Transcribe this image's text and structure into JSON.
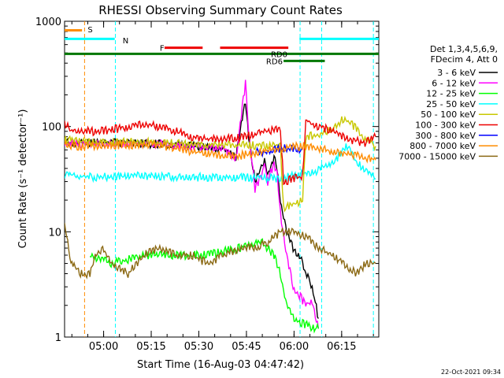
{
  "chart_data": {
    "type": "line",
    "title": "RHESSI Observing Summary Count Rates",
    "xlabel": "Start Time (16-Aug-03 04:47:42)",
    "ylabel": "Count Rate (s⁻¹ detector⁻¹)",
    "yscale": "log",
    "ylim": [
      1,
      1000
    ],
    "xlim_minutes_after_start": [
      0,
      99
    ],
    "x_ticks": [
      {
        "label": "05:00",
        "t": 12.3
      },
      {
        "label": "05:15",
        "t": 27.3
      },
      {
        "label": "05:30",
        "t": 42.3
      },
      {
        "label": "05:45",
        "t": 57.3
      },
      {
        "label": "06:00",
        "t": 72.3
      },
      {
        "label": "06:15",
        "t": 87.3
      }
    ],
    "y_ticks": [
      {
        "label": "1",
        "v": 1
      },
      {
        "label": "10",
        "v": 10
      },
      {
        "label": "100",
        "v": 100
      },
      {
        "label": "1000",
        "v": 1000
      }
    ],
    "legend_header": [
      "Det 1,3,4,5,6,9,",
      "FDecim 4, Att 0"
    ],
    "series": [
      {
        "name": "3 - 6 keV",
        "color": "#000000",
        "points": [
          [
            0,
            70
          ],
          [
            5,
            70
          ],
          [
            10,
            70
          ],
          [
            20,
            70
          ],
          [
            30,
            68
          ],
          [
            40,
            65
          ],
          [
            50,
            62
          ],
          [
            54,
            50
          ],
          [
            56,
            120
          ],
          [
            57,
            175
          ],
          [
            58,
            80
          ],
          [
            60,
            30
          ],
          [
            62,
            40
          ],
          [
            63,
            50
          ],
          [
            64,
            35
          ],
          [
            66,
            50
          ],
          [
            67,
            40
          ],
          [
            68,
            20
          ],
          [
            70,
            10
          ],
          [
            72,
            7
          ],
          [
            74,
            6
          ],
          [
            76,
            4
          ],
          [
            78,
            3
          ],
          [
            80,
            1.5
          ]
        ]
      },
      {
        "name": "6 - 12 keV",
        "color": "#ff00ff",
        "points": [
          [
            0,
            68
          ],
          [
            5,
            68
          ],
          [
            10,
            68
          ],
          [
            20,
            70
          ],
          [
            30,
            68
          ],
          [
            40,
            65
          ],
          [
            50,
            62
          ],
          [
            54,
            50
          ],
          [
            56,
            150
          ],
          [
            57,
            260
          ],
          [
            58,
            90
          ],
          [
            60,
            25
          ],
          [
            62,
            35
          ],
          [
            63,
            45
          ],
          [
            64,
            30
          ],
          [
            66,
            45
          ],
          [
            67,
            35
          ],
          [
            68,
            15
          ],
          [
            70,
            6
          ],
          [
            72,
            3
          ],
          [
            74,
            2.5
          ],
          [
            76,
            2
          ],
          [
            78,
            2.2
          ],
          [
            80,
            1.2
          ]
        ]
      },
      {
        "name": "12 - 25 keV",
        "color": "#00ff00",
        "points": [
          [
            8,
            6
          ],
          [
            15,
            5
          ],
          [
            25,
            6
          ],
          [
            35,
            6
          ],
          [
            45,
            6
          ],
          [
            55,
            7
          ],
          [
            62,
            8
          ],
          [
            66,
            6
          ],
          [
            68,
            4
          ],
          [
            70,
            2
          ],
          [
            72,
            1.5
          ],
          [
            76,
            1.3
          ],
          [
            80,
            1.2
          ]
        ]
      },
      {
        "name": "25 - 50 keV",
        "color": "#00ffff",
        "points": [
          [
            0,
            35
          ],
          [
            10,
            33
          ],
          [
            20,
            34
          ],
          [
            30,
            34
          ],
          [
            40,
            33
          ],
          [
            50,
            33
          ],
          [
            60,
            33
          ],
          [
            68,
            32
          ],
          [
            80,
            38
          ],
          [
            86,
            50
          ],
          [
            88,
            65
          ],
          [
            90,
            62
          ],
          [
            92,
            45
          ],
          [
            95,
            38
          ],
          [
            98,
            32
          ]
        ]
      },
      {
        "name": "50 - 100 keV",
        "color": "#c8c800",
        "points": [
          [
            0,
            75
          ],
          [
            10,
            70
          ],
          [
            20,
            72
          ],
          [
            30,
            70
          ],
          [
            40,
            68
          ],
          [
            50,
            67
          ],
          [
            60,
            66
          ],
          [
            68,
            65
          ],
          [
            69,
            17
          ],
          [
            72,
            18
          ],
          [
            75,
            20
          ],
          [
            76,
            80
          ],
          [
            80,
            85
          ],
          [
            85,
            95
          ],
          [
            88,
            120
          ],
          [
            90,
            110
          ],
          [
            94,
            80
          ],
          [
            98,
            65
          ]
        ]
      },
      {
        "name": "100 - 300 keV",
        "color": "#ee0000",
        "points": [
          [
            0,
            110
          ],
          [
            2,
            90
          ],
          [
            10,
            90
          ],
          [
            20,
            98
          ],
          [
            25,
            105
          ],
          [
            30,
            100
          ],
          [
            35,
            90
          ],
          [
            40,
            80
          ],
          [
            48,
            75
          ],
          [
            55,
            78
          ],
          [
            60,
            85
          ],
          [
            65,
            92
          ],
          [
            68,
            97
          ],
          [
            69,
            30
          ],
          [
            72,
            32
          ],
          [
            75,
            34
          ],
          [
            76,
            115
          ],
          [
            80,
            100
          ],
          [
            85,
            90
          ],
          [
            90,
            75
          ],
          [
            95,
            70
          ],
          [
            98,
            80
          ]
        ]
      },
      {
        "name": "300 - 800 keV",
        "color": "#0000ff",
        "points": [
          [
            60,
            60
          ],
          [
            62,
            55
          ],
          [
            64,
            58
          ],
          [
            66,
            60
          ],
          [
            68,
            62
          ],
          [
            70,
            62
          ],
          [
            72,
            62
          ],
          [
            74,
            60
          ],
          [
            75,
            62
          ]
        ]
      },
      {
        "name": "800 - 7000 keV",
        "color": "#ff8c00",
        "points": [
          [
            0,
            68
          ],
          [
            5,
            65
          ],
          [
            10,
            65
          ],
          [
            20,
            67
          ],
          [
            25,
            68
          ],
          [
            30,
            66
          ],
          [
            35,
            62
          ],
          [
            40,
            58
          ],
          [
            45,
            55
          ],
          [
            50,
            53
          ],
          [
            55,
            53
          ],
          [
            60,
            55
          ],
          [
            65,
            60
          ],
          [
            68,
            62
          ],
          [
            70,
            64
          ],
          [
            75,
            65
          ],
          [
            80,
            62
          ],
          [
            85,
            58
          ],
          [
            90,
            55
          ],
          [
            95,
            50
          ],
          [
            98,
            48
          ]
        ]
      },
      {
        "name": "7000 - 15000 keV",
        "color": "#8b6914",
        "points": [
          [
            0,
            12
          ],
          [
            2,
            5
          ],
          [
            5,
            4
          ],
          [
            8,
            4
          ],
          [
            10,
            6
          ],
          [
            12,
            7
          ],
          [
            15,
            5
          ],
          [
            20,
            4
          ],
          [
            25,
            6
          ],
          [
            30,
            7
          ],
          [
            35,
            6
          ],
          [
            40,
            6
          ],
          [
            45,
            5
          ],
          [
            50,
            6
          ],
          [
            55,
            7
          ],
          [
            60,
            7
          ],
          [
            64,
            8
          ],
          [
            68,
            10
          ],
          [
            72,
            10
          ],
          [
            76,
            9
          ],
          [
            80,
            7
          ],
          [
            84,
            6
          ],
          [
            88,
            5
          ],
          [
            92,
            4
          ],
          [
            95,
            5
          ],
          [
            98,
            5
          ]
        ]
      }
    ],
    "annotations": {
      "bars": [
        {
          "label": "S",
          "color": "#ff8c00",
          "t0": 0,
          "t1": 5.5,
          "v": 820
        },
        {
          "label": "N",
          "color": "#00ffff",
          "t0": 0,
          "t1": 15.8,
          "v": 680
        },
        {
          "label": "N",
          "color": "#00ffff",
          "t0": 74,
          "t1": 99,
          "v": 680
        },
        {
          "label": "F",
          "color": "#ee0000",
          "t0": 31.5,
          "t1": 43.5,
          "v": 560
        },
        {
          "label": "F",
          "color": "#ee0000",
          "t0": 49,
          "t1": 70.5,
          "v": 560
        },
        {
          "label": "RD0",
          "color": "#007700",
          "t0": 0,
          "t1": 99,
          "v": 490
        },
        {
          "label": "RD6",
          "color": "#007700",
          "t0": 69,
          "t1": 82,
          "v": 420
        }
      ],
      "labels": [
        {
          "text": "S",
          "color": "#ff8c00",
          "t": 7.3,
          "v": 840
        },
        {
          "text": "N",
          "color": "#00ffff",
          "t": 18.3,
          "v": 660
        },
        {
          "text": "F",
          "color": "#ee0000",
          "t": 30,
          "v": 560
        },
        {
          "text": "RD0",
          "color": "#007700",
          "t": 65,
          "v": 490
        },
        {
          "text": "RD6",
          "color": "#007700",
          "t": 63.5,
          "v": 420
        }
      ],
      "vlines": [
        {
          "color": "#ff8c00",
          "t": 6.3
        },
        {
          "color": "#00ffff",
          "t": 16
        },
        {
          "color": "#00ffff",
          "t": 74.2
        },
        {
          "color": "#00ffff",
          "t": 81
        },
        {
          "color": "#00ffff",
          "t": 97.3
        }
      ]
    },
    "footer_timestamp": "22-Oct-2021 09:34"
  }
}
